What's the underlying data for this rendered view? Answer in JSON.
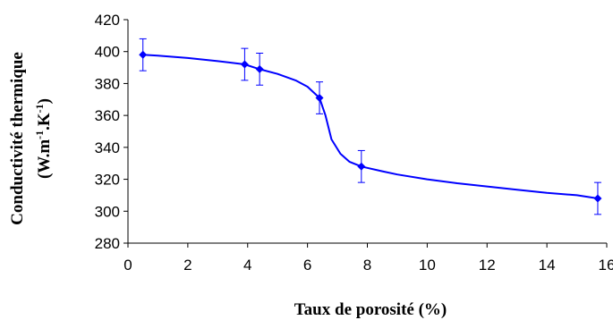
{
  "chart_data": {
    "type": "line",
    "title": "",
    "xlabel": "Taux de porosité (%)",
    "ylabel": {
      "line1": "Conductivité thermique",
      "line2_prefix": "(W.m",
      "sup1": "-1",
      "line2_mid": ".K",
      "sup2": "-1",
      "line2_suffix": ")"
    },
    "xlim": [
      0,
      16
    ],
    "ylim": [
      280,
      420
    ],
    "x_ticks": [
      0,
      2,
      4,
      6,
      8,
      10,
      12,
      14,
      16
    ],
    "y_ticks": [
      280,
      300,
      320,
      340,
      360,
      380,
      400,
      420
    ],
    "grid": false,
    "series": [
      {
        "color": "#0000FF",
        "marker": "diamond",
        "points": [
          {
            "x": 0.5,
            "y": 398,
            "err": 10
          },
          {
            "x": 3.9,
            "y": 392,
            "err": 10
          },
          {
            "x": 4.4,
            "y": 389,
            "err": 10
          },
          {
            "x": 6.4,
            "y": 371,
            "err": 10
          },
          {
            "x": 7.8,
            "y": 328,
            "err": 10
          },
          {
            "x": 15.7,
            "y": 308,
            "err": 10
          }
        ],
        "smooth_curve": [
          [
            0.5,
            398
          ],
          [
            1.0,
            397.5
          ],
          [
            2.0,
            396
          ],
          [
            3.0,
            394
          ],
          [
            3.9,
            392
          ],
          [
            4.4,
            389
          ],
          [
            5.0,
            386
          ],
          [
            5.6,
            382
          ],
          [
            6.0,
            378
          ],
          [
            6.4,
            371
          ],
          [
            6.6,
            360
          ],
          [
            6.8,
            345
          ],
          [
            7.1,
            336
          ],
          [
            7.4,
            331
          ],
          [
            7.8,
            328
          ],
          [
            8.5,
            325
          ],
          [
            9.0,
            323
          ],
          [
            10.0,
            320
          ],
          [
            11.0,
            317.5
          ],
          [
            12.0,
            315.5
          ],
          [
            13.0,
            313.5
          ],
          [
            14.0,
            311.5
          ],
          [
            15.0,
            310
          ],
          [
            15.7,
            308
          ]
        ]
      }
    ]
  }
}
